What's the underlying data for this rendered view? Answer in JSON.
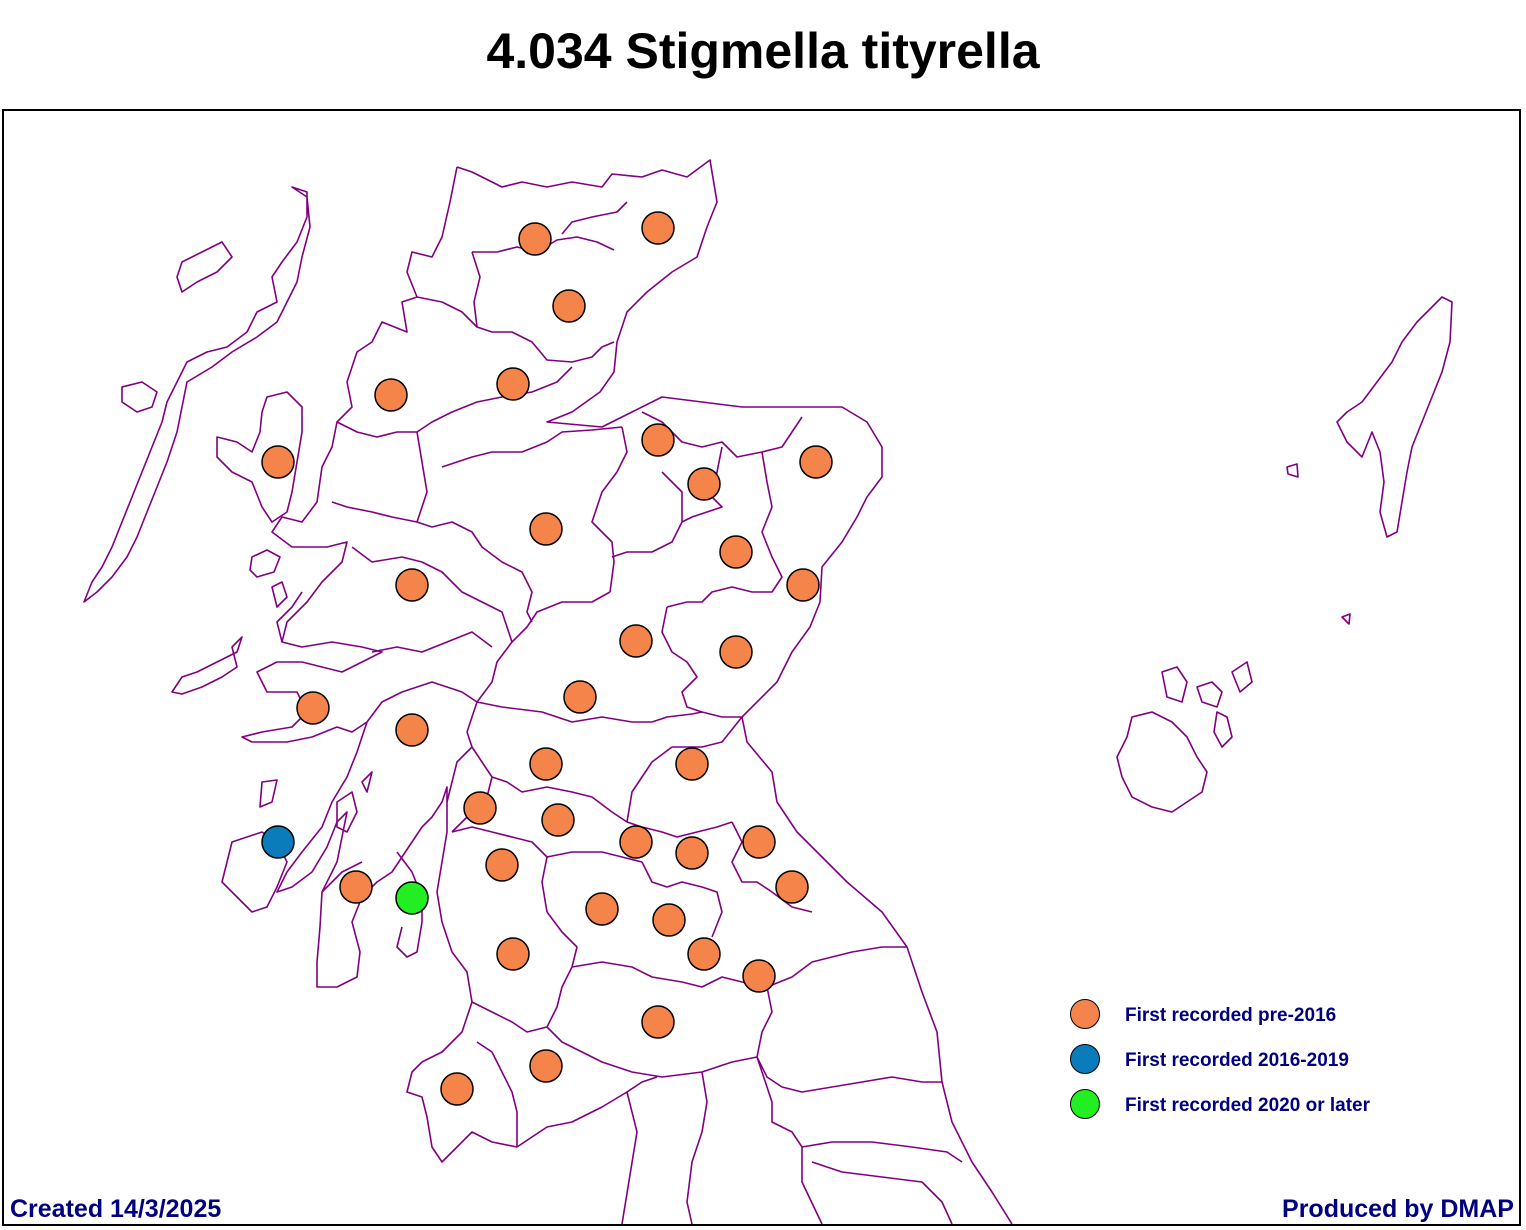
{
  "title": "4.034 Stigmella tityrella",
  "legend": [
    {
      "label": "First recorded pre-2016",
      "color": "#f5844a"
    },
    {
      "label": "First recorded 2016-2019",
      "color": "#0a7cbc"
    },
    {
      "label": "First recorded 2020 or later",
      "color": "#22ee22"
    }
  ],
  "footer": {
    "created": "Created 14/3/2025",
    "produced": "Produced by DMAP"
  },
  "colors": {
    "boundary": "#800080",
    "pre_2016": "#f5844a",
    "y2016_2019": "#0a7cbc",
    "y2020_later": "#22ee22"
  },
  "icons": {
    "record_marker": "filled-circle"
  }
}
